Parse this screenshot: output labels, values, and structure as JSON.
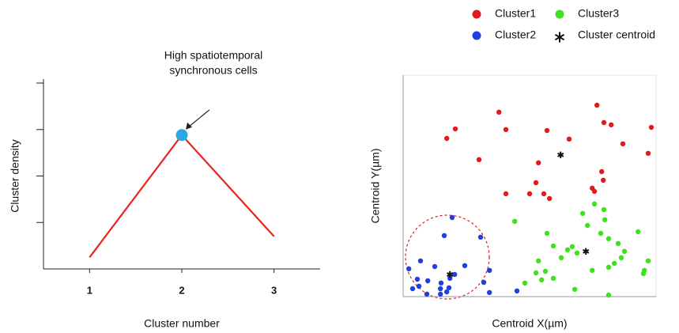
{
  "chart_data": [
    {
      "type": "line",
      "x_label": "Cluster number",
      "y_label": "Cluster density",
      "x": [
        1,
        2,
        3
      ],
      "xlim": [
        0.5,
        3.5
      ],
      "xticks": [
        1,
        2,
        3
      ],
      "ylim": [
        0,
        4
      ],
      "yticks": [
        1,
        2,
        3,
        4
      ],
      "series": [
        {
          "color": "#e8251c",
          "values": [
            0.25,
            2.88,
            0.7
          ]
        }
      ],
      "annotation": {
        "lines": [
          "High spatiotemporal",
          "synchronous cells"
        ],
        "x": 2,
        "color": "#29a8e8"
      }
    },
    {
      "type": "scatter",
      "x_label": "Centroid X(µm)",
      "y_label": "Centroid Y(µm)",
      "xlim": [
        0,
        8
      ],
      "ylim": [
        0,
        7
      ],
      "series": [
        {
          "name": "Cluster1",
          "color": "#e31a1c",
          "marker": "dot",
          "x": [
            1.65,
            1.38,
            3.03,
            3.25,
            2.4,
            4.55,
            5.25,
            6.13,
            6.35,
            6.58,
            6.95,
            7.85,
            7.75,
            4.28,
            4.2,
            4.0,
            3.25,
            4.45,
            4.63,
            5.98,
            6.05,
            6.28,
            6.33
          ],
          "y": [
            5.3,
            5.0,
            5.83,
            5.28,
            4.33,
            5.25,
            4.98,
            6.05,
            5.5,
            5.43,
            4.83,
            5.35,
            4.53,
            4.23,
            3.6,
            3.25,
            3.25,
            3.25,
            3.1,
            3.43,
            3.33,
            3.95,
            3.68
          ]
        },
        {
          "name": "Cluster2",
          "color": "#1f3fe0",
          "marker": "dot",
          "x": [
            1.55,
            1.3,
            2.45,
            0.55,
            0.18,
            1.0,
            1.95,
            1.63,
            0.45,
            0.78,
            1.2,
            1.48,
            0.3,
            0.5,
            1.18,
            1.45,
            0.75,
            1.18,
            1.38,
            2.55,
            2.73,
            2.73,
            3.6
          ],
          "y": [
            2.5,
            1.93,
            1.88,
            1.13,
            0.88,
            0.95,
            0.98,
            0.7,
            0.55,
            0.5,
            0.43,
            0.58,
            0.25,
            0.33,
            0.25,
            0.28,
            0.08,
            0.08,
            0.15,
            0.45,
            0.83,
            0.13,
            0.18
          ]
        },
        {
          "name": "Cluster3",
          "color": "#3ee21e",
          "marker": "dot",
          "x": [
            3.53,
            4.55,
            5.68,
            6.05,
            6.35,
            6.38,
            5.83,
            6.25,
            6.5,
            7.43,
            4.75,
            5.2,
            5.35,
            5.0,
            5.5,
            4.28,
            4.5,
            4.2,
            3.85,
            4.38,
            4.75,
            5.43,
            6.5,
            6.5,
            6.68,
            6.8,
            7.0,
            6.9,
            7.75,
            7.63,
            7.6,
            5.98
          ],
          "y": [
            2.38,
            2.0,
            2.63,
            2.93,
            2.75,
            2.43,
            2.25,
            2.0,
            1.83,
            2.05,
            1.6,
            1.48,
            1.58,
            1.23,
            1.38,
            1.13,
            0.8,
            0.75,
            0.43,
            0.53,
            0.58,
            0.23,
            0.05,
            0.93,
            1.05,
            1.68,
            1.43,
            1.23,
            1.13,
            0.83,
            0.73,
            0.83
          ]
        },
        {
          "name": "Cluster centroid",
          "color": "#111111",
          "marker": "star",
          "x": [
            4.98,
            5.78,
            1.48
          ],
          "y": [
            4.48,
            1.43,
            0.7
          ]
        }
      ]
    }
  ]
}
